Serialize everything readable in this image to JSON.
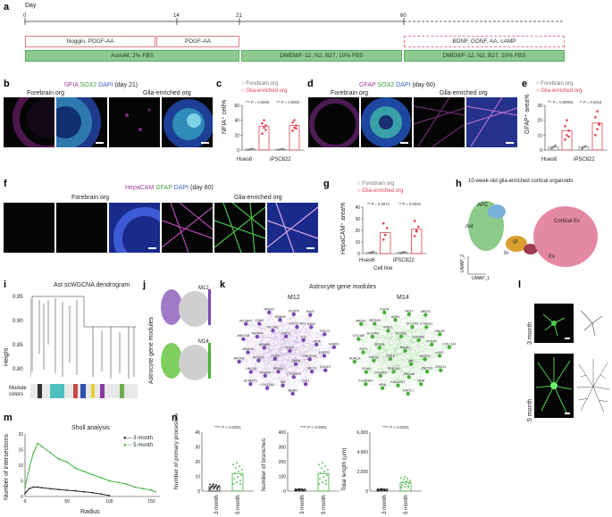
{
  "panel_a": {
    "label": "a",
    "axis_label": "Day",
    "ticks": [
      "0",
      "14",
      "21",
      "60"
    ],
    "row1": [
      "Noggin, PDGF-AA",
      "PDGF-AA",
      "BDNF, GDNF, AA, cAMP"
    ],
    "row2": [
      "AstroM, 2% FBS",
      "DMEM/F-12, N2, B27, 10% FBS",
      "DMEM/F-12, N2, B27, 10% FBS"
    ]
  },
  "panel_b": {
    "label": "b",
    "title_parts": [
      "NFIA",
      "SOX2",
      "DAPI",
      "(day 21)"
    ],
    "left_label": "Forebrain org",
    "right_label": "Glia-enriched org"
  },
  "panel_c": {
    "label": "c",
    "legend": [
      "Forebrain org",
      "Glia-enriched org"
    ],
    "ylabel": "NFIA⁺ cell%",
    "stats": [
      "*** P = 0.0005",
      "*** P = 0.0004"
    ],
    "categories": [
      "Hues6",
      "iPSC822"
    ]
  },
  "panel_d": {
    "label": "d",
    "title_parts": [
      "GFAP",
      "SOX2",
      "DAPI",
      "(day 60)"
    ],
    "left_label": "Forebrain org",
    "right_label": "Glia-enriched org"
  },
  "panel_e": {
    "label": "e",
    "legend": [
      "Forebrain org",
      "Glia-enriched org"
    ],
    "ylabel": "GFAP⁺ area%",
    "stats": [
      "*** P = 0.00004",
      "** P = 0.0015"
    ],
    "categories": [
      "Hues6",
      "iPSC822"
    ]
  },
  "panel_f": {
    "label": "f",
    "title_parts": [
      "HepaCAM",
      "GFAP",
      "DAPI",
      "(day 60)"
    ],
    "left_label": "Forebrain org",
    "right_label": "Glia-enriched org"
  },
  "panel_g": {
    "label": "g",
    "legend": [
      "Forebrain org",
      "Glia-enriched org"
    ],
    "ylabel": "HepaCAM⁺ area%",
    "xlabel": "Cell line",
    "stats": [
      "** P = 0.0074",
      "** P = 0.0026"
    ],
    "categories": [
      "Hues6",
      "iPSC822"
    ]
  },
  "panel_h": {
    "label": "h",
    "title": "10-week-old glia-enriched cortical organoids",
    "clusters": [
      "APC",
      "Ast",
      "Cortical Ex",
      "IP",
      "In",
      "Ex"
    ],
    "axis_x": "UMAP_1",
    "axis_y": "UMAP_2"
  },
  "panel_i": {
    "label": "i",
    "title": "Ast scWGCNA dendrogram",
    "ylabel": "Height",
    "yticks": [
      "0.95",
      "0.90",
      "0.85",
      "0.80"
    ],
    "module_colors_label": "Module colors"
  },
  "panel_j": {
    "label": "j",
    "ylabel": "Astrocyte gene modules",
    "modules": [
      "M12",
      "M14"
    ]
  },
  "panel_k": {
    "label": "k",
    "title": "Astrocyte gene modules",
    "m12_title": "M12",
    "m14_title": "M14",
    "m12_genes": [
      "ETV5",
      "DLG5",
      "GPC3",
      "DPP6",
      "ADAM9",
      "TLE",
      "EPHA5",
      "NLGN1",
      "PDGFRA",
      "WSCD1",
      "LINC01-AS1",
      "CTTNBP2",
      "TSPAN7",
      "LRP8",
      "PDGFB",
      "SEMA5",
      "MEX3",
      "NKAIN3",
      "NAV2",
      "ID4",
      "CDH2",
      "FGFR2",
      "LINC00",
      "DUSP6",
      "CHL1",
      "ANKS1B",
      "TMTC2",
      "COL27A1",
      "NPAS2",
      "KCNH7",
      "NRXN1",
      "NAV3",
      "BCAN",
      "IGF2BP2",
      "FAM19",
      "ADAMTS"
    ],
    "m14_genes": [
      "P4HA2",
      "DOK5",
      "NCOA2",
      "ZNF",
      "SPON1",
      "EDNRB",
      "PDE10A",
      "WNK1",
      "WDR11",
      "TRPS1",
      "SLC1A3",
      "SHISA6",
      "SLC4A4",
      "NTRK2",
      "COL4A5",
      "AQP4",
      "ZNF521",
      "ZNF4",
      "PTPRZ1",
      "KIAA1217",
      "ZBTB20",
      "LHX2",
      "SOX6",
      "HES1",
      "NFIB",
      "COL4A6",
      "HBEGF",
      "NFIA",
      "EGFR",
      "GNG12",
      "HDAC9",
      "MEIS2",
      "TCF7L1",
      "NRSN1",
      "COL11A1",
      "PLEKHA7"
    ]
  },
  "panel_l": {
    "label": "l",
    "rows": [
      "3 month",
      "5 month"
    ]
  },
  "panel_m": {
    "label": "m",
    "title": "Sholl analysis",
    "xlabel": "Radius",
    "ylabel": "Number of intersections",
    "legend": [
      "3 month",
      "5 month"
    ],
    "xticks": [
      "0",
      "50",
      "100",
      "150"
    ],
    "yticks": [
      "0",
      "5",
      "10",
      "15",
      "20"
    ]
  },
  "panel_n": {
    "label": "n",
    "stat": "**** P < 0.0001",
    "categories": [
      "3 month",
      "5 month"
    ],
    "plots": [
      {
        "ylabel": "Number of primary processes",
        "yticks": [
          "0",
          "10",
          "20",
          "30",
          "40"
        ]
      },
      {
        "ylabel": "Number of branches",
        "yticks": [
          "0",
          "100",
          "200",
          "300",
          "400"
        ]
      },
      {
        "ylabel": "Total length (µm)",
        "yticks": [
          "0",
          "2,000",
          "4,000",
          "6,000"
        ]
      }
    ]
  },
  "chart_data": [
    {
      "type": "bar",
      "panel": "c",
      "categories": [
        "Hues6",
        "iPSC822"
      ],
      "series": [
        {
          "name": "Forebrain org",
          "values": [
            1,
            1
          ],
          "points": [
            [
              0.5,
              1.2,
              1.5
            ],
            [
              0.5,
              1.0,
              1.3
            ]
          ]
        },
        {
          "name": "Glia-enriched org",
          "values": [
            32,
            33
          ],
          "points": [
            [
              22,
              30,
              33,
              36,
              40,
              27
            ],
            [
              26,
              30,
              33,
              37,
              40,
              29
            ]
          ]
        }
      ],
      "ylabel": "NFIA⁺ cell%",
      "ylim": [
        0,
        60
      ],
      "yticks": [
        0,
        20,
        40,
        60
      ]
    },
    {
      "type": "bar",
      "panel": "e",
      "categories": [
        "Hues6",
        "iPSC822"
      ],
      "series": [
        {
          "name": "Forebrain org",
          "values": [
            2,
            2
          ],
          "points": [
            [
              1,
              2,
              3
            ],
            [
              1,
              2,
              2.5
            ]
          ]
        },
        {
          "name": "Glia-enriched org",
          "values": [
            13,
            18
          ],
          "points": [
            [
              7,
              10,
              13,
              16,
              20,
              9
            ],
            [
              10,
              14,
              18,
              22,
              26,
              17
            ]
          ]
        }
      ],
      "ylabel": "GFAP⁺ area%",
      "ylim": [
        0,
        30
      ],
      "yticks": [
        0,
        10,
        20,
        30
      ]
    },
    {
      "type": "bar",
      "panel": "g",
      "categories": [
        "Hues6",
        "iPSC822"
      ],
      "series": [
        {
          "name": "Forebrain org",
          "values": [
            1,
            1
          ],
          "points": [
            [
              0.5,
              1,
              1.5
            ],
            [
              0.5,
              1,
              1.3
            ]
          ]
        },
        {
          "name": "Glia-enriched org",
          "values": [
            18,
            21
          ],
          "points": [
            [
              12,
              16,
              22,
              26
            ],
            [
              15,
              19,
              23,
              28,
              20
            ]
          ]
        }
      ],
      "ylabel": "HepaCAM⁺ area%",
      "xlabel": "Cell line",
      "ylim": [
        0,
        40
      ],
      "yticks": [
        0,
        10,
        20,
        30,
        40
      ]
    },
    {
      "type": "line",
      "panel": "m",
      "title": "Sholl analysis",
      "xlabel": "Radius",
      "ylabel": "Number of intersections",
      "xlim": [
        0,
        160
      ],
      "ylim": [
        0,
        20
      ],
      "series": [
        {
          "name": "3 month",
          "x": [
            0,
            5,
            10,
            15,
            20,
            30,
            40,
            50,
            60,
            70,
            80,
            90,
            100
          ],
          "y": [
            1,
            2.5,
            3,
            3,
            2.8,
            2.5,
            2.2,
            2,
            1.8,
            1.5,
            1.2,
            0.8,
            0.3
          ]
        },
        {
          "name": "5 month",
          "x": [
            0,
            5,
            10,
            15,
            20,
            30,
            40,
            50,
            60,
            70,
            80,
            90,
            100,
            110,
            120,
            130,
            140,
            150,
            155
          ],
          "y": [
            3,
            9,
            14,
            17,
            16,
            14,
            12,
            11,
            9,
            8,
            7,
            6,
            5,
            4.5,
            4,
            3,
            2.5,
            2,
            1.5
          ]
        }
      ]
    },
    {
      "type": "bar",
      "panel": "n",
      "subplots": [
        {
          "ylabel": "Number of primary processes",
          "categories": [
            "3 month",
            "5 month"
          ],
          "values": [
            3,
            12
          ],
          "ylim": [
            0,
            40
          ],
          "stat": "**** P < 0.0001"
        },
        {
          "ylabel": "Number of branches",
          "categories": [
            "3 month",
            "5 month"
          ],
          "values": [
            10,
            120
          ],
          "ylim": [
            0,
            400
          ],
          "stat": "**** P < 0.0001"
        },
        {
          "ylabel": "Total length (µm)",
          "categories": [
            "3 month",
            "5 month"
          ],
          "values": [
            150,
            900
          ],
          "ylim": [
            0,
            6000
          ],
          "stat": "**** P < 0.0001"
        }
      ]
    }
  ]
}
